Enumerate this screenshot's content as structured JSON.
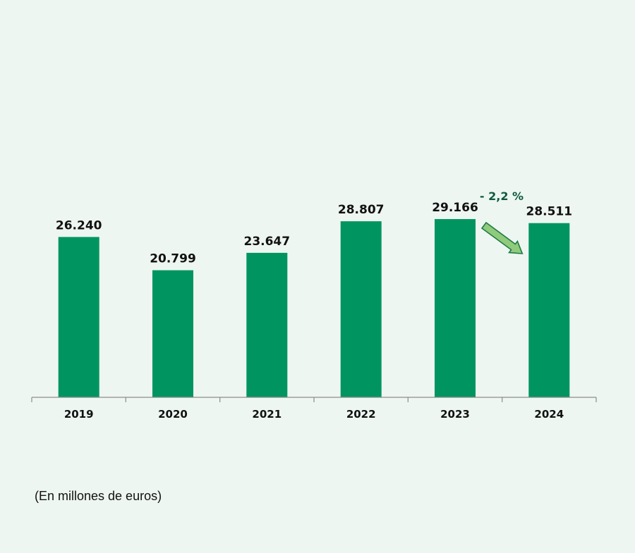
{
  "chart_data": {
    "type": "bar",
    "categories": [
      "2019",
      "2020",
      "2021",
      "2022",
      "2023",
      "2024"
    ],
    "values": [
      26240,
      20799,
      23647,
      28807,
      29166,
      28511
    ],
    "value_labels": [
      "26.240",
      "20.799",
      "23.647",
      "28.807",
      "29.166",
      "28.511"
    ],
    "ylim": [
      0,
      29166
    ],
    "grid": false,
    "bar_color": "#009560",
    "annotation": {
      "text": "- 2,2 %",
      "from": "2023",
      "to": "2024",
      "arrow_fill": "#8fcb7a",
      "arrow_stroke": "#1e7a4a"
    }
  },
  "footnote": "(En millones de euros)"
}
